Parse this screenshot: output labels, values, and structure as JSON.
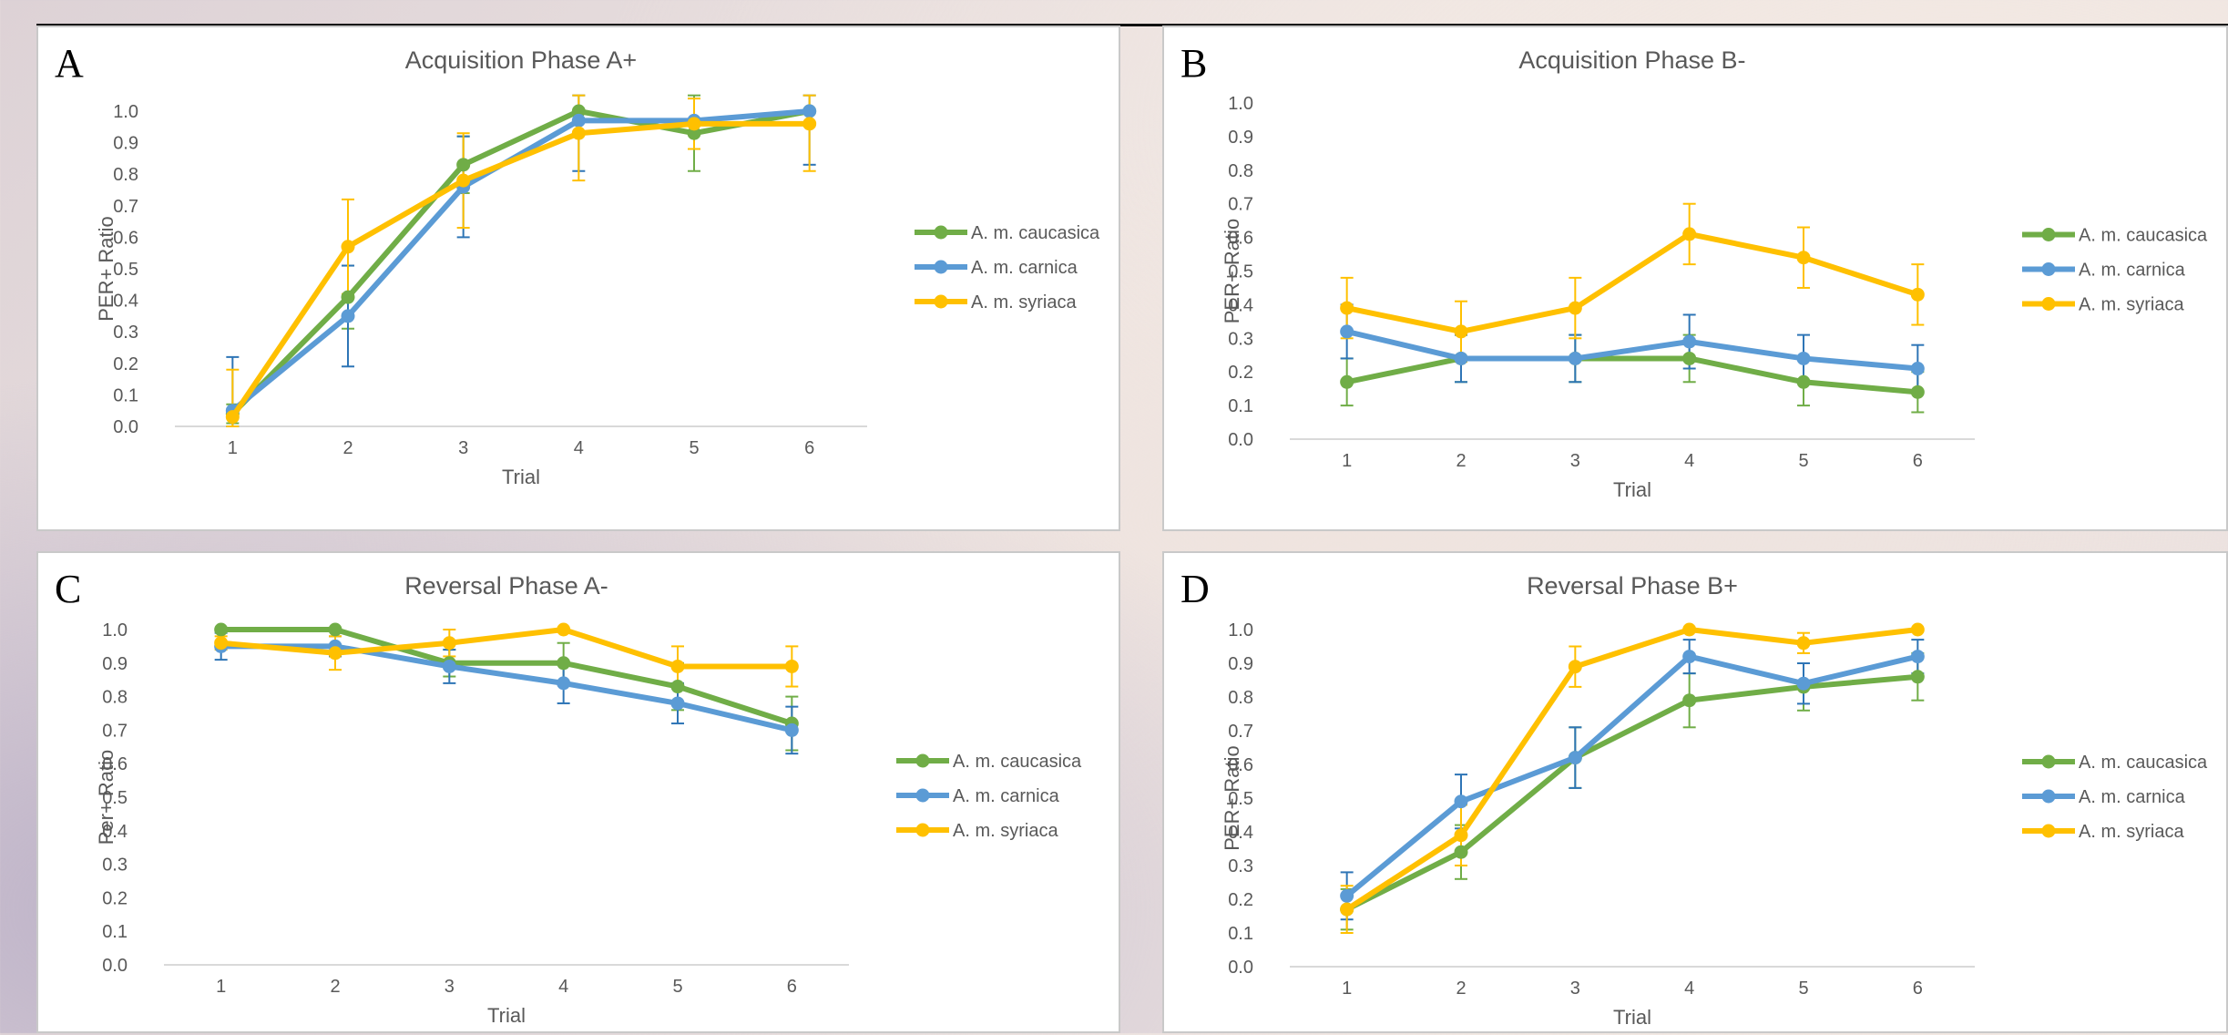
{
  "colors": {
    "caucasica": "#70AD47",
    "carnica": "#5B9BD5",
    "syriaca": "#FFC000",
    "carnica_error": "#2E75B6",
    "axis_text": "#595959",
    "axis_line": "#D9D9D9"
  },
  "chart_data": [
    {
      "type": "line",
      "letter": "A",
      "title": "Acquisition Phase A+",
      "xlabel": "Trial",
      "ylabel": "PER+ Ratio",
      "categories": [
        "1",
        "2",
        "3",
        "4",
        "5",
        "6"
      ],
      "yticks": [
        "0.0",
        "0.1",
        "0.2",
        "0.3",
        "0.4",
        "0.5",
        "0.6",
        "0.7",
        "0.8",
        "0.9",
        "1.0"
      ],
      "ylim": [
        0,
        1
      ],
      "legend": "right",
      "series": [
        {
          "name": "A. m. caucasica",
          "color": "#70AD47",
          "error_color": "#70AD47",
          "values": [
            0.04,
            0.41,
            0.83,
            1.0,
            0.93,
            1.0
          ],
          "errors": [
            0.03,
            0.1,
            0.09,
            0.0,
            0.12,
            0.0
          ]
        },
        {
          "name": "A. m. carnica",
          "color": "#5B9BD5",
          "error_color": "#2E75B6",
          "values": [
            0.05,
            0.35,
            0.76,
            0.97,
            0.97,
            1.0
          ],
          "errors": [
            0.17,
            0.16,
            0.16,
            0.16,
            0.0,
            0.17
          ]
        },
        {
          "name": "A. m. syriaca",
          "color": "#FFC000",
          "error_color": "#FFC000",
          "values": [
            0.03,
            0.57,
            0.78,
            0.93,
            0.96,
            0.96
          ],
          "errors": [
            0.15,
            0.15,
            0.15,
            0.15,
            0.08,
            0.15
          ]
        }
      ]
    },
    {
      "type": "line",
      "letter": "B",
      "title": "Acquisition Phase B-",
      "xlabel": "Trial",
      "ylabel": "PER+ Ratio",
      "categories": [
        "1",
        "2",
        "3",
        "4",
        "5",
        "6"
      ],
      "yticks": [
        "0.0",
        "0.1",
        "0.2",
        "0.3",
        "0.4",
        "0.5",
        "0.6",
        "0.7",
        "0.8",
        "0.9",
        "1.0"
      ],
      "ylim": [
        0,
        1
      ],
      "legend": "right",
      "series": [
        {
          "name": "A. m. caucasica",
          "color": "#70AD47",
          "error_color": "#70AD47",
          "values": [
            0.17,
            0.24,
            0.24,
            0.24,
            0.17,
            0.14
          ],
          "errors": [
            0.07,
            0.07,
            0.07,
            0.07,
            0.07,
            0.06
          ]
        },
        {
          "name": "A. m. carnica",
          "color": "#5B9BD5",
          "error_color": "#2E75B6",
          "values": [
            0.32,
            0.24,
            0.24,
            0.29,
            0.24,
            0.21
          ],
          "errors": [
            0.08,
            0.07,
            0.07,
            0.08,
            0.07,
            0.07
          ]
        },
        {
          "name": "A. m. syriaca",
          "color": "#FFC000",
          "error_color": "#FFC000",
          "values": [
            0.39,
            0.32,
            0.39,
            0.61,
            0.54,
            0.43
          ],
          "errors": [
            0.09,
            0.09,
            0.09,
            0.09,
            0.09,
            0.09
          ]
        }
      ]
    },
    {
      "type": "line",
      "letter": "C",
      "title": "Reversal Phase A-",
      "xlabel": "Trial",
      "ylabel": "Per+ Ratio",
      "categories": [
        "1",
        "2",
        "3",
        "4",
        "5",
        "6"
      ],
      "yticks": [
        "0.0",
        "0.1",
        "0.2",
        "0.3",
        "0.4",
        "0.5",
        "0.6",
        "0.7",
        "0.8",
        "0.9",
        "1.0"
      ],
      "ylim": [
        0,
        1
      ],
      "legend": "right",
      "series": [
        {
          "name": "A. m. caucasica",
          "color": "#70AD47",
          "error_color": "#70AD47",
          "values": [
            1.0,
            1.0,
            0.9,
            0.9,
            0.83,
            0.72
          ],
          "errors": [
            0.0,
            0.0,
            0.04,
            0.06,
            0.07,
            0.08
          ]
        },
        {
          "name": "A. m. carnica",
          "color": "#5B9BD5",
          "error_color": "#2E75B6",
          "values": [
            0.95,
            0.95,
            0.89,
            0.84,
            0.78,
            0.7
          ],
          "errors": [
            0.04,
            0.03,
            0.05,
            0.06,
            0.06,
            0.07
          ]
        },
        {
          "name": "A. m. syriaca",
          "color": "#FFC000",
          "error_color": "#FFC000",
          "values": [
            0.96,
            0.93,
            0.96,
            1.0,
            0.89,
            0.89
          ],
          "errors": [
            0.02,
            0.05,
            0.04,
            0.0,
            0.06,
            0.06
          ]
        }
      ]
    },
    {
      "type": "line",
      "letter": "D",
      "title": "Reversal Phase B+",
      "xlabel": "Trial",
      "ylabel": "PER+ Ratio",
      "categories": [
        "1",
        "2",
        "3",
        "4",
        "5",
        "6"
      ],
      "yticks": [
        "0.0",
        "0.1",
        "0.2",
        "0.3",
        "0.4",
        "0.5",
        "0.6",
        "0.7",
        "0.8",
        "0.9",
        "1.0"
      ],
      "ylim": [
        0,
        1
      ],
      "legend": "right",
      "series": [
        {
          "name": "A. m. caucasica",
          "color": "#70AD47",
          "error_color": "#70AD47",
          "values": [
            0.17,
            0.34,
            0.62,
            0.79,
            0.83,
            0.86
          ],
          "errors": [
            0.06,
            0.08,
            0.09,
            0.08,
            0.07,
            0.07
          ]
        },
        {
          "name": "A. m. carnica",
          "color": "#5B9BD5",
          "error_color": "#2E75B6",
          "values": [
            0.21,
            0.49,
            0.62,
            0.92,
            0.84,
            0.92
          ],
          "errors": [
            0.07,
            0.08,
            0.09,
            0.05,
            0.06,
            0.05
          ]
        },
        {
          "name": "A. m. syriaca",
          "color": "#FFC000",
          "error_color": "#FFC000",
          "values": [
            0.17,
            0.39,
            0.89,
            1.0,
            0.96,
            1.0
          ],
          "errors": [
            0.07,
            0.09,
            0.06,
            0.0,
            0.03,
            0.0
          ]
        }
      ]
    }
  ]
}
